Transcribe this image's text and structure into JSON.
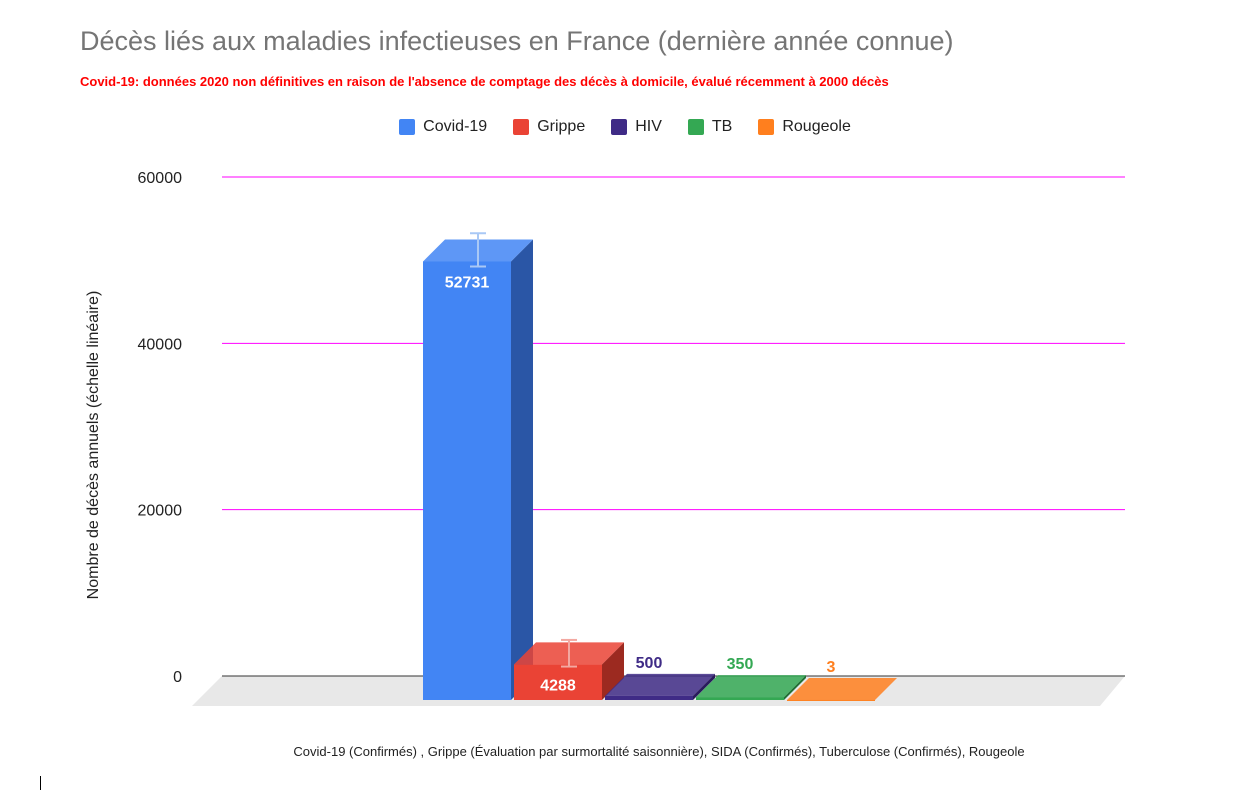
{
  "chart_data": {
    "type": "bar",
    "title": "Décès liés aux maladies infectieuses en France (dernière année connue)",
    "subtitle": "Covid-19: données 2020 non définitives en raison de l'absence de comptage des décès à domicile, évalué récemment à 2000 décès",
    "ylabel": "Nombre de décès annuels (échelle linéaire)",
    "xlabel": "Covid-19 (Confirmés) , Grippe (Évaluation par surmortalité saisonnière), SIDA (Confirmés), Tuberculose (Confirmés), Rougeole",
    "ylim": [
      0,
      60000
    ],
    "yticks": [
      0,
      20000,
      40000,
      60000
    ],
    "grid": true,
    "gridline_color": "#ff00ff",
    "legend_position": "top",
    "series": [
      {
        "name": "Covid-19",
        "value": 52731,
        "label": "52731",
        "color": "#4285f4",
        "side_color": "#2a56a6",
        "error_upper": 54800,
        "error_lower": 50800,
        "label_inside": true
      },
      {
        "name": "Grippe",
        "value": 4288,
        "label": "4288",
        "color": "#ea4335",
        "side_color": "#9c2a20",
        "error_upper": 5900,
        "error_lower": 2700,
        "label_inside": true
      },
      {
        "name": "HIV",
        "value": 500,
        "label": "500",
        "color": "#3f2b86",
        "side_color": "#2a1c5c",
        "label_inside": false
      },
      {
        "name": "TB",
        "value": 350,
        "label": "350",
        "color": "#34a853",
        "side_color": "#227035",
        "label_inside": false
      },
      {
        "name": "Rougeole",
        "value": 3,
        "label": "3",
        "color": "#ff7f1e",
        "side_color": "#b85a12",
        "label_inside": false
      }
    ]
  }
}
